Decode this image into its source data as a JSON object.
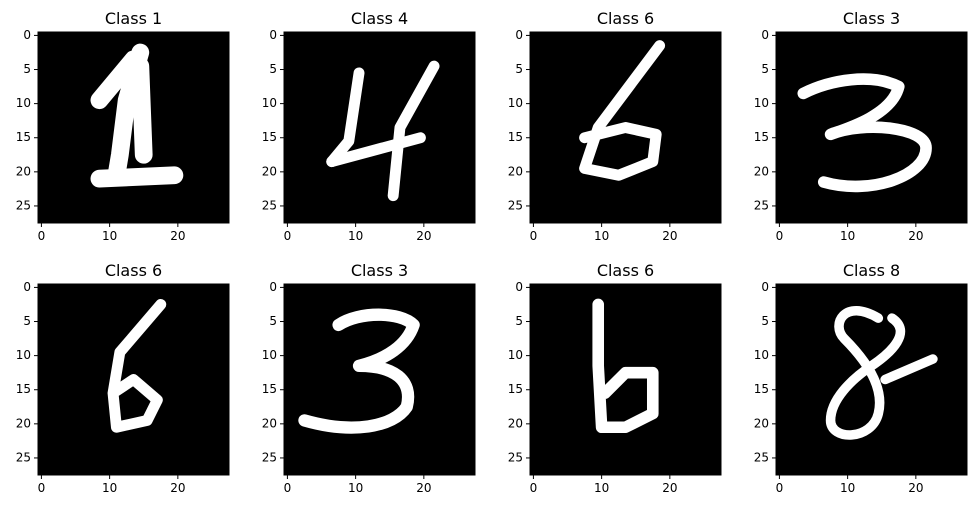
{
  "axes": {
    "x_ticks": [
      "0",
      "10",
      "20"
    ],
    "y_ticks": [
      "0",
      "5",
      "10",
      "15",
      "20",
      "25"
    ]
  },
  "panels": [
    {
      "title": "Class 1",
      "digit": "1"
    },
    {
      "title": "Class 4",
      "digit": "4"
    },
    {
      "title": "Class 6",
      "digit": "6a"
    },
    {
      "title": "Class 3",
      "digit": "3a"
    },
    {
      "title": "Class 6",
      "digit": "6b"
    },
    {
      "title": "Class 3",
      "digit": "3b"
    },
    {
      "title": "Class 6",
      "digit": "6c"
    },
    {
      "title": "Class 8",
      "digit": "8"
    }
  ]
}
